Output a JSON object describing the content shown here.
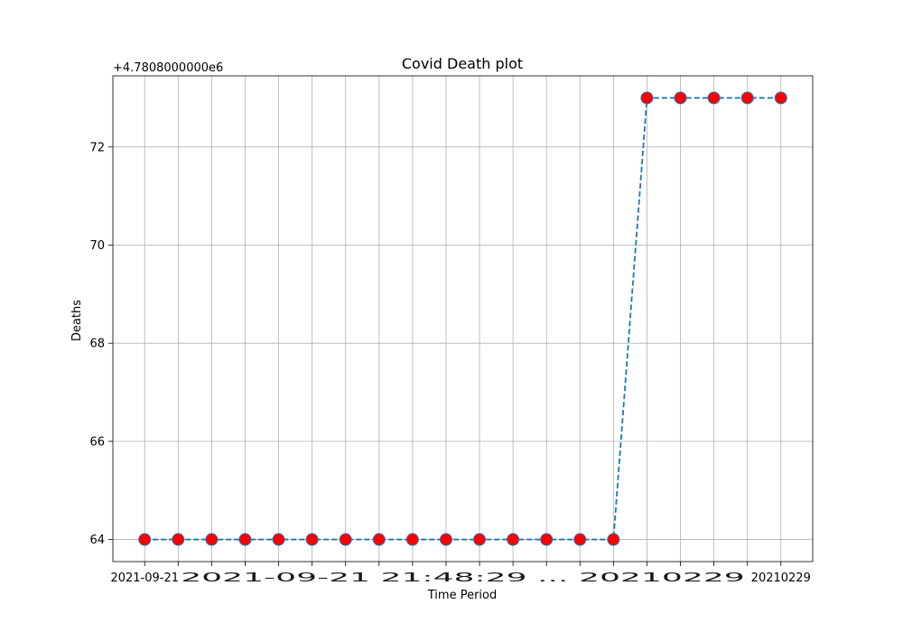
{
  "chart_data": {
    "type": "line",
    "title": "Covid Death plot",
    "xlabel": "Time Period",
    "ylabel": "Deaths",
    "offset_label": "+4.7808000000e6",
    "categories": [
      "2021-09-21",
      "",
      "",
      "",
      "",
      "",
      "",
      "",
      "",
      "",
      "",
      "",
      "",
      "",
      "",
      "",
      "",
      "",
      "",
      "20210229"
    ],
    "x_tick_label_overlap_text": "2021-09-21 21:48:29 ... 20210229",
    "series": [
      {
        "values": [
          4780864,
          4780864,
          4780864,
          4780864,
          4780864,
          4780864,
          4780864,
          4780864,
          4780864,
          4780864,
          4780864,
          4780864,
          4780864,
          4780864,
          4780864,
          4780873,
          4780873,
          4780873,
          4780873,
          4780873
        ],
        "line_color": "#1f77b4",
        "line_style": "dashed",
        "marker_face_color": "#ff0000",
        "marker_edge_color": "#1f77b4"
      }
    ],
    "yticks": [
      64,
      66,
      68,
      70,
      72
    ],
    "ytick_labels": [
      "64",
      "66",
      "68",
      "70",
      "72"
    ],
    "y_offset": 4780800,
    "ylim": [
      63.55,
      73.45
    ],
    "grid": true
  }
}
